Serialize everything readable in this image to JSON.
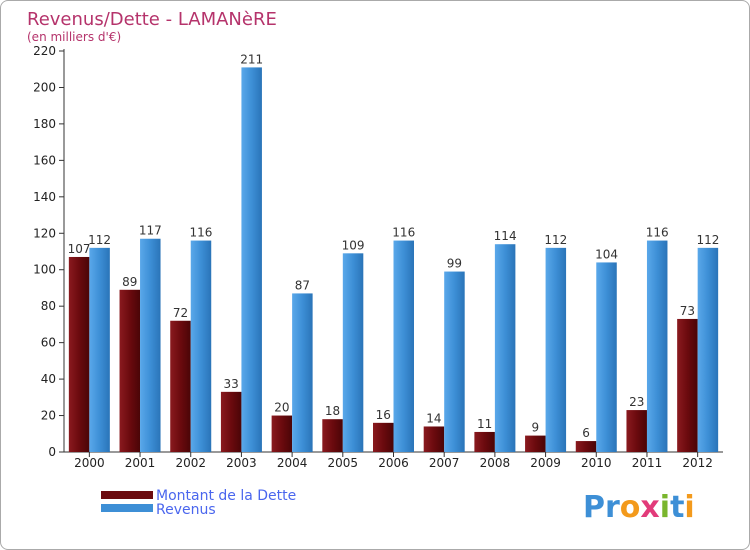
{
  "header": {
    "title": "Revenus/Dette - LAMANèRE",
    "subtitle": "(en milliers d'€)"
  },
  "legend": {
    "items": [
      {
        "label": "Montant de la Dette",
        "color": "#6b0a0e"
      },
      {
        "label": "Revenus",
        "color": "#3d8fd6"
      }
    ]
  },
  "logo": {
    "text": "Proxiti"
  },
  "chart_data": {
    "type": "bar",
    "categories": [
      "2000",
      "2001",
      "2002",
      "2003",
      "2004",
      "2005",
      "2006",
      "2007",
      "2008",
      "2009",
      "2010",
      "2011",
      "2012"
    ],
    "series": [
      {
        "name": "Montant de la Dette",
        "color": "#6b0a0e",
        "values": [
          107,
          89,
          72,
          33,
          20,
          18,
          16,
          14,
          11,
          9,
          6,
          23,
          73
        ]
      },
      {
        "name": "Revenus",
        "color": "#3d8fd6",
        "values": [
          112,
          117,
          116,
          211,
          87,
          109,
          116,
          99,
          114,
          112,
          104,
          116,
          112
        ]
      }
    ],
    "ylim": [
      0,
      220
    ],
    "yticks": [
      0,
      20,
      40,
      60,
      80,
      100,
      120,
      140,
      160,
      180,
      200,
      220
    ],
    "grid": false,
    "legend_position": "bottom-left"
  }
}
